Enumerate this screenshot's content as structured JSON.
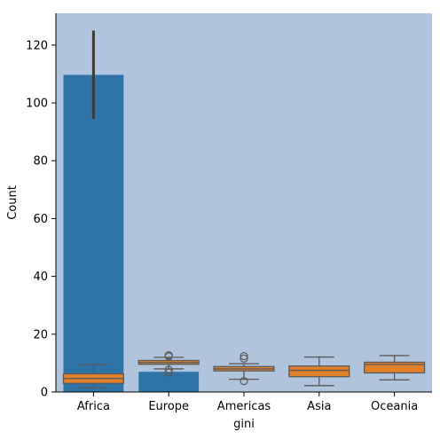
{
  "chart_data": {
    "type": "bar",
    "xlabel": "gini",
    "ylabel": "Count",
    "categories": [
      "Africa",
      "Europe",
      "Americas",
      "Asia",
      "Oceania"
    ],
    "ylim": [
      0,
      131
    ],
    "yticks": [
      0,
      20,
      40,
      60,
      80,
      100,
      120
    ],
    "grid": false,
    "colors": {
      "plot_background": "#b0c4de",
      "bar": "#2e74a6",
      "box": "#e1812c",
      "box_edge": "#5a5a5a",
      "errorbar": "#3a3a3a"
    },
    "bars": {
      "values": [
        109.7,
        7,
        null,
        null,
        null
      ],
      "error_low": [
        94.5,
        null,
        null,
        null,
        null
      ],
      "error_high": [
        125,
        null,
        null,
        null,
        null
      ]
    },
    "boxes": [
      {
        "category": "Africa",
        "whisker_low": 1.5,
        "q1": 3,
        "median": 4.7,
        "q3": 6.3,
        "whisker_high": 9.5,
        "outliers": []
      },
      {
        "category": "Europe",
        "whisker_low": 8,
        "q1": 9.6,
        "median": 10.2,
        "q3": 10.9,
        "whisker_high": 12,
        "outliers": [
          12.7,
          12.3,
          7.7,
          6.7
        ]
      },
      {
        "category": "Americas",
        "whisker_low": 4.4,
        "q1": 7.3,
        "median": 8,
        "q3": 8.8,
        "whisker_high": 9.8,
        "outliers": [
          12.4,
          11.6,
          3.8
        ]
      },
      {
        "category": "Asia",
        "whisker_low": 2.2,
        "q1": 5.3,
        "median": 7.5,
        "q3": 9,
        "whisker_high": 12.1,
        "outliers": []
      },
      {
        "category": "Oceania",
        "whisker_low": 4.2,
        "q1": 6.6,
        "median": 9.5,
        "q3": 10.3,
        "whisker_high": 12.6,
        "outliers": []
      }
    ]
  }
}
